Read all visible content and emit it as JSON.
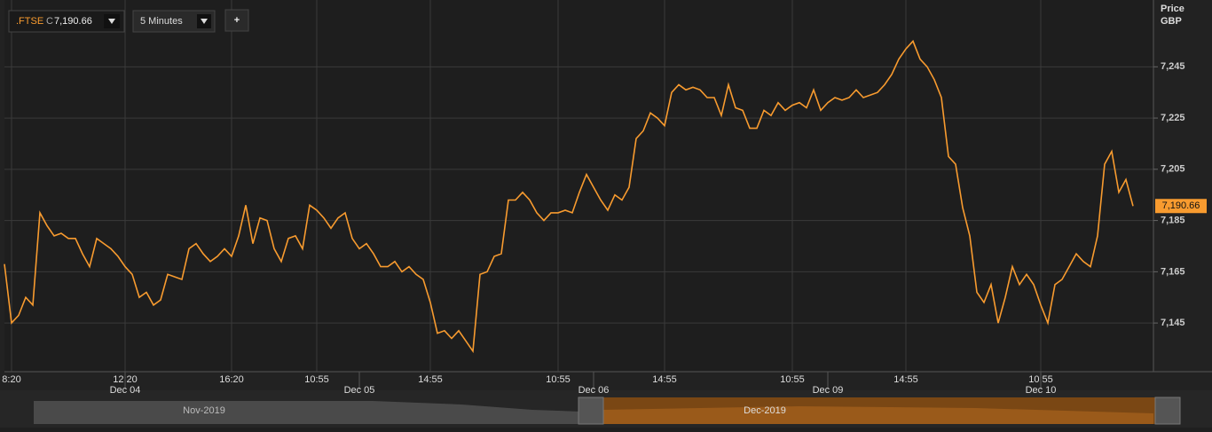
{
  "chart_data": {
    "type": "line",
    "header": {
      "instrument": ".FTSE",
      "price_flag": "C",
      "interval": "5 Minutes",
      "add_button": "+"
    },
    "axis_title": [
      "Price",
      "GBP"
    ],
    "last_price": {
      "value": 7190.66,
      "label": "7,190.66"
    },
    "categories": [
      null,
      "8:20",
      null,
      null,
      null,
      null,
      null,
      null,
      null,
      null,
      null,
      null,
      null,
      null,
      null,
      null,
      null,
      "12:20",
      null,
      null,
      null,
      null,
      null,
      null,
      null,
      null,
      null,
      null,
      null,
      null,
      null,
      null,
      "16:20",
      null,
      null,
      null,
      null,
      null,
      null,
      null,
      null,
      null,
      null,
      null,
      "10:55",
      null,
      null,
      null,
      null,
      null,
      null,
      null,
      null,
      null,
      null,
      null,
      null,
      null,
      null,
      null,
      "14:55",
      null,
      null,
      null,
      null,
      null,
      null,
      null,
      null,
      null,
      null,
      null,
      null,
      null,
      null,
      null,
      null,
      null,
      "10:55",
      null,
      null,
      null,
      null,
      null,
      null,
      null,
      null,
      null,
      null,
      null,
      null,
      null,
      null,
      "14:55",
      null,
      null,
      null,
      null,
      null,
      null,
      null,
      null,
      null,
      null,
      null,
      null,
      null,
      null,
      null,
      null,
      null,
      "10:55",
      null,
      null,
      null,
      null,
      null,
      null,
      null,
      null,
      null,
      null,
      null,
      null,
      null,
      null,
      null,
      "14:55",
      null,
      null,
      null,
      null,
      null,
      null,
      null,
      null,
      null,
      null,
      null,
      null,
      null,
      null,
      null,
      null,
      null,
      null,
      "10:55",
      null,
      null,
      null,
      null,
      null,
      null,
      null,
      null,
      null,
      null,
      null,
      null,
      null
    ],
    "date_labels": [
      null,
      null,
      null,
      null,
      null,
      null,
      null,
      null,
      null,
      null,
      null,
      null,
      null,
      null,
      null,
      null,
      null,
      "Dec 04",
      null,
      null,
      null,
      null,
      null,
      null,
      null,
      null,
      null,
      null,
      null,
      null,
      null,
      null,
      null,
      null,
      null,
      null,
      null,
      null,
      null,
      null,
      null,
      null,
      null,
      null,
      null,
      null,
      null,
      null,
      null,
      null,
      "Dec 05",
      null,
      null,
      null,
      null,
      null,
      null,
      null,
      null,
      null,
      null,
      null,
      null,
      null,
      null,
      null,
      null,
      null,
      null,
      null,
      null,
      null,
      null,
      null,
      null,
      null,
      null,
      null,
      null,
      null,
      null,
      null,
      null,
      "Dec 06",
      null,
      null,
      null,
      null,
      null,
      null,
      null,
      null,
      null,
      null,
      null,
      null,
      null,
      null,
      null,
      null,
      null,
      null,
      null,
      null,
      null,
      null,
      null,
      null,
      null,
      null,
      null,
      null,
      null,
      null,
      null,
      null,
      "Dec 09",
      null,
      null,
      null,
      null,
      null,
      null,
      null,
      null,
      null,
      null,
      null,
      null,
      null,
      null,
      null,
      null,
      null,
      null,
      null,
      null,
      null,
      null,
      null,
      null,
      null,
      null,
      null,
      null,
      null,
      "Dec 10",
      null,
      null,
      null,
      null,
      null,
      null,
      null,
      null,
      null,
      null,
      null,
      null,
      null
    ],
    "series": [
      {
        "name": ".FTSE",
        "color": "#f89b2f",
        "values": [
          7168,
          7145,
          7148,
          7155,
          7152,
          7188,
          7183,
          7179,
          7180,
          7178,
          7178,
          7172,
          7167,
          7178,
          7176,
          7174,
          7171,
          7167,
          7164,
          7155,
          7157,
          7152,
          7154,
          7164,
          7163,
          7162,
          7174,
          7176,
          7172,
          7169,
          7171,
          7174,
          7171,
          7179,
          7191,
          7176,
          7186,
          7185,
          7174,
          7169,
          7178,
          7179,
          7174,
          7191,
          7189,
          7186,
          7182,
          7186,
          7188,
          7178,
          7174,
          7176,
          7172,
          7167,
          7167,
          7169,
          7165,
          7167,
          7164,
          7162,
          7153,
          7141,
          7142,
          7139,
          7142,
          7138,
          7134,
          7164,
          7165,
          7171,
          7172,
          7193,
          7193,
          7196,
          7193,
          7188,
          7185,
          7188,
          7188,
          7189,
          7188,
          7196,
          7203,
          7198,
          7193,
          7189,
          7195,
          7193,
          7198,
          7217,
          7220,
          7227,
          7225,
          7222,
          7235,
          7238,
          7236,
          7237,
          7236,
          7233,
          7233,
          7226,
          7238,
          7229,
          7228,
          7221,
          7221,
          7228,
          7226,
          7231,
          7228,
          7230,
          7231,
          7229,
          7236,
          7228,
          7231,
          7233,
          7232,
          7233,
          7236,
          7233,
          7234,
          7235,
          7238,
          7242,
          7248,
          7252,
          7255,
          7248,
          7245,
          7240,
          7233,
          7210,
          7207,
          7190,
          7179,
          7157,
          7153,
          7160,
          7145,
          7155,
          7167,
          7160,
          7164,
          7160,
          7152,
          7145,
          7160,
          7162,
          7167,
          7172,
          7169,
          7167,
          7179,
          7207,
          7212,
          7196,
          7201,
          7190.66
        ]
      }
    ],
    "ylim": [
      7126,
      7269
    ],
    "yticks": [
      {
        "value": 7145,
        "label": "7,145"
      },
      {
        "value": 7165,
        "label": "7,165"
      },
      {
        "value": 7185,
        "label": "7,185"
      },
      {
        "value": 7205,
        "label": "7,205"
      },
      {
        "value": 7225,
        "label": "7,225"
      },
      {
        "value": 7245,
        "label": "7,245"
      }
    ],
    "grid": true,
    "navigator": {
      "labels": [
        "Nov-2019",
        "Dec-2019"
      ]
    }
  }
}
